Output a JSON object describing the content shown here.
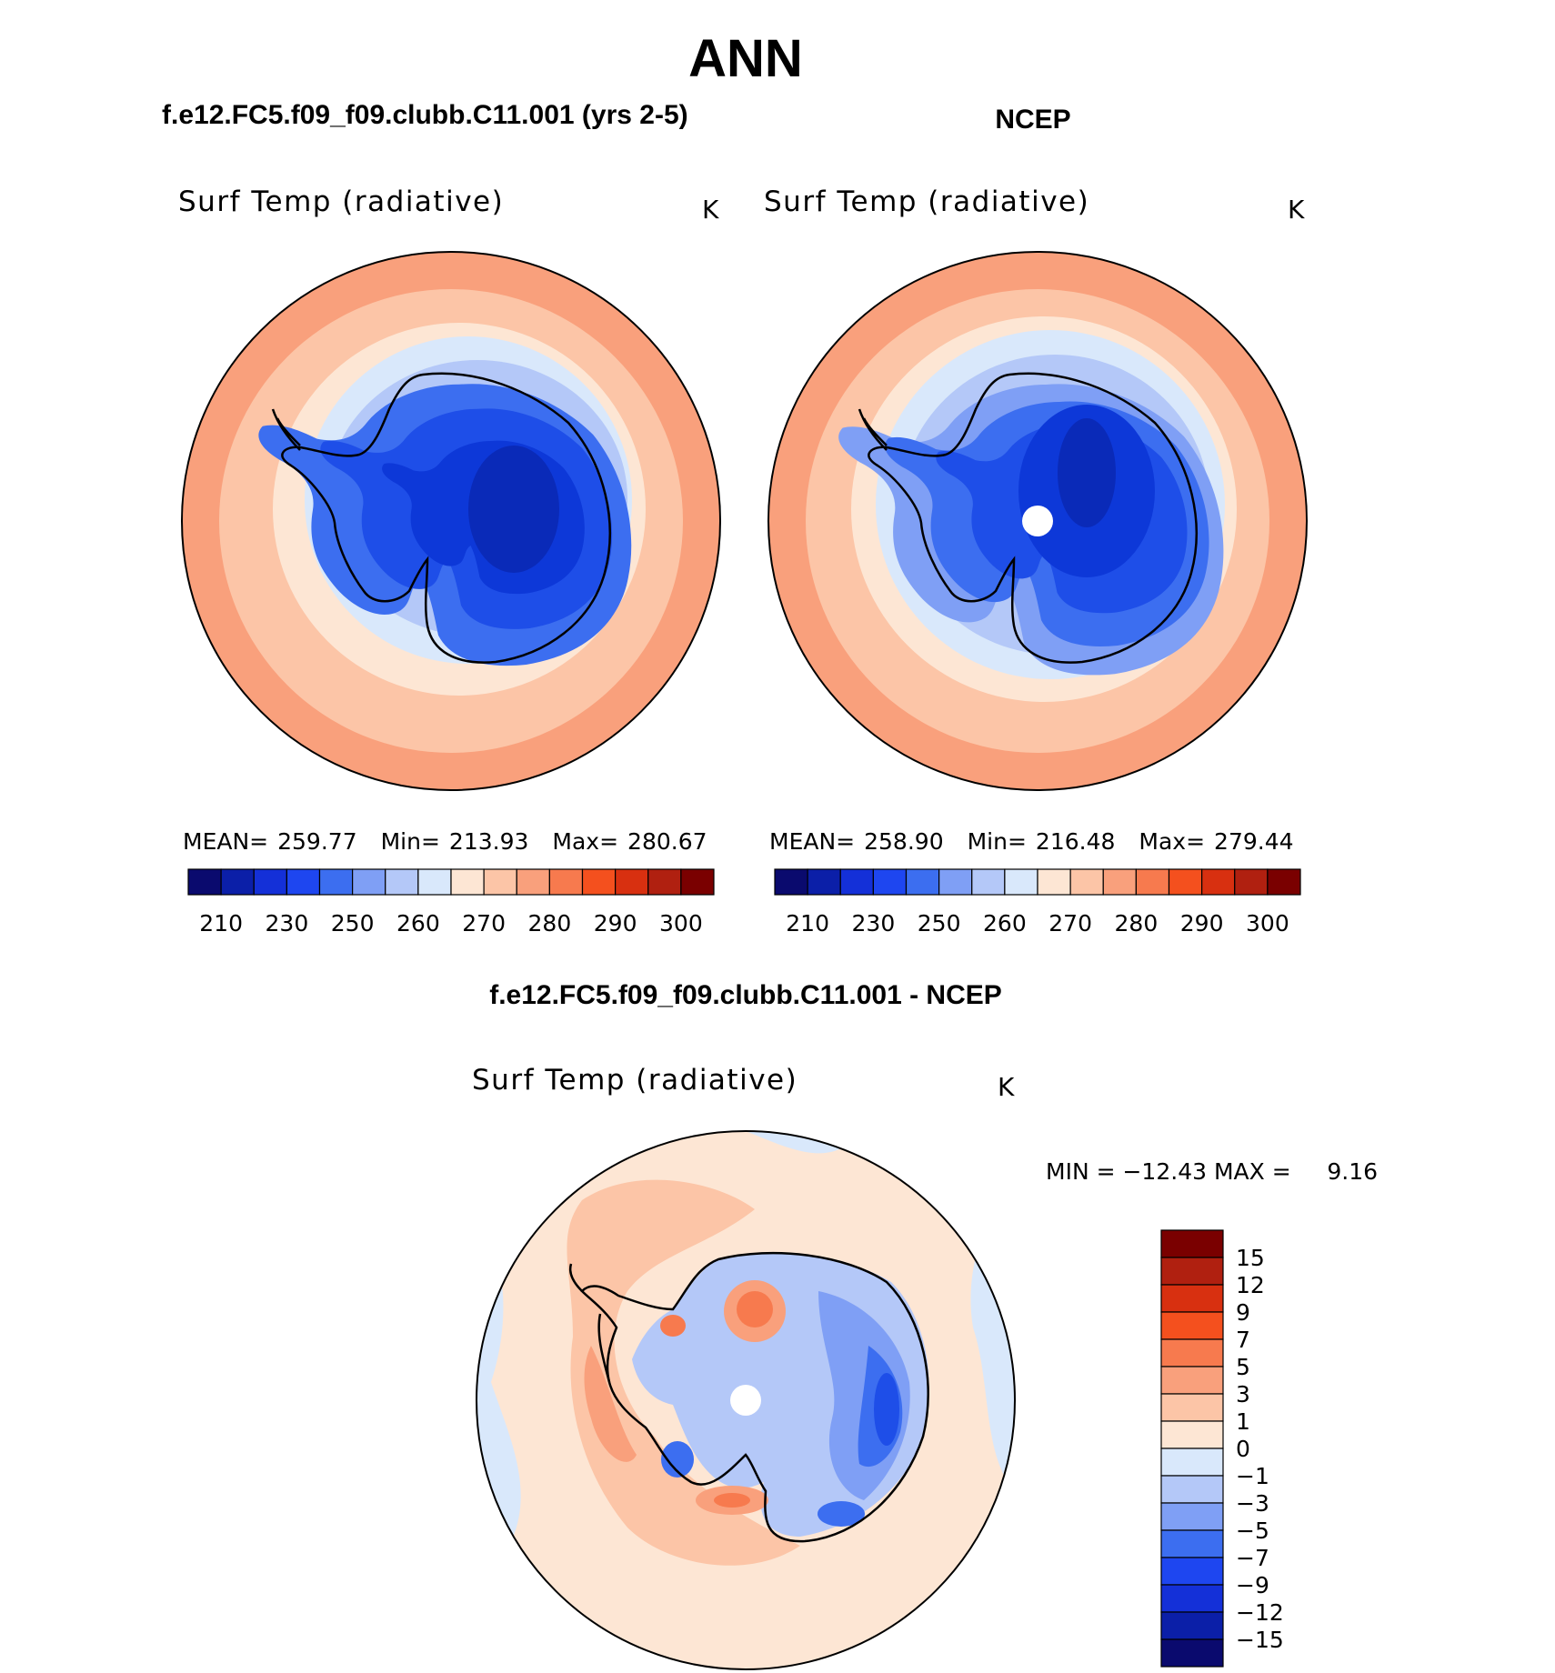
{
  "figure_title": "ANN",
  "chart_data": [
    {
      "type": "heatmap",
      "projection": "south-polar-stereographic",
      "case_title": "f.e12.FC5.f09_f09.clubb.C11.001 (yrs 2-5)",
      "variable": "Surf Temp (radiative)",
      "units": "K",
      "stats": {
        "mean_label": "MEAN=",
        "mean": "259.77",
        "min_label": "Min=",
        "min": "213.93",
        "max_label": "Max=",
        "max": "280.67"
      },
      "colorbar": {
        "orientation": "horizontal",
        "tick_labels": [
          "210",
          "230",
          "250",
          "260",
          "270",
          "280",
          "290",
          "300"
        ],
        "colors": [
          "#0a0a6e",
          "#0b1fa8",
          "#1430d8",
          "#1e46f0",
          "#3c6ef0",
          "#7f9ff5",
          "#b4c8f8",
          "#d9e8fb",
          "#fde6d4",
          "#fcc5a7",
          "#f9a07c",
          "#f77a4e",
          "#f4501e",
          "#d83010",
          "#b02010",
          "#7a0000"
        ]
      },
      "field_bands": [
        {
          "band": 0,
          "value": "<220",
          "color": "#0a2ab8"
        },
        {
          "band": 1,
          "value": "230-240",
          "color": "#0d38d8"
        },
        {
          "band": 2,
          "value": "240-250",
          "color": "#1e4ee8"
        },
        {
          "band": 3,
          "value": "250-255",
          "color": "#3c6ef0"
        },
        {
          "band": 4,
          "value": "255-260",
          "color": "#7f9ff5"
        },
        {
          "band": 5,
          "value": "260-265",
          "color": "#b4c8f8"
        },
        {
          "band": 6,
          "value": "265-270",
          "color": "#d9e8fb"
        },
        {
          "band": 7,
          "value": "270-275",
          "color": "#fde6d4"
        },
        {
          "band": 8,
          "value": "275-280",
          "color": "#fcc5a7"
        },
        {
          "band": 9,
          "value": "280-285",
          "color": "#f9a07c"
        }
      ]
    },
    {
      "type": "heatmap",
      "projection": "south-polar-stereographic",
      "case_title": "NCEP",
      "variable": "Surf Temp (radiative)",
      "units": "K",
      "stats": {
        "mean_label": "MEAN=",
        "mean": "258.90",
        "min_label": "Min=",
        "min": "216.48",
        "max_label": "Max=",
        "max": "279.44"
      },
      "colorbar": {
        "orientation": "horizontal",
        "tick_labels": [
          "210",
          "230",
          "250",
          "260",
          "270",
          "280",
          "290",
          "300"
        ],
        "colors": [
          "#0a0a6e",
          "#0b1fa8",
          "#1430d8",
          "#1e46f0",
          "#3c6ef0",
          "#7f9ff5",
          "#b4c8f8",
          "#d9e8fb",
          "#fde6d4",
          "#fcc5a7",
          "#f9a07c",
          "#f77a4e",
          "#f4501e",
          "#d83010",
          "#b02010",
          "#7a0000"
        ]
      }
    },
    {
      "type": "heatmap",
      "projection": "south-polar-stereographic",
      "case_title": "f.e12.FC5.f09_f09.clubb.C11.001 - NCEP",
      "variable": "Surf Temp (radiative)",
      "units": "K",
      "stats_text": "MIN = −12.43 MAX =     9.16",
      "colorbar": {
        "orientation": "vertical",
        "tick_labels": [
          "15",
          "12",
          "9",
          "7",
          "5",
          "3",
          "1",
          "0",
          "−1",
          "−3",
          "−5",
          "−7",
          "−9",
          "−12",
          "−15"
        ],
        "colors": [
          "#7a0000",
          "#b02010",
          "#d83010",
          "#f4501e",
          "#f77a4e",
          "#f9a07c",
          "#fcc5a7",
          "#fde6d4",
          "#d9e8fb",
          "#b4c8f8",
          "#7f9ff5",
          "#3c6ef0",
          "#1e46f0",
          "#1430d8",
          "#0b1fa8",
          "#0a0a6e"
        ]
      }
    }
  ]
}
